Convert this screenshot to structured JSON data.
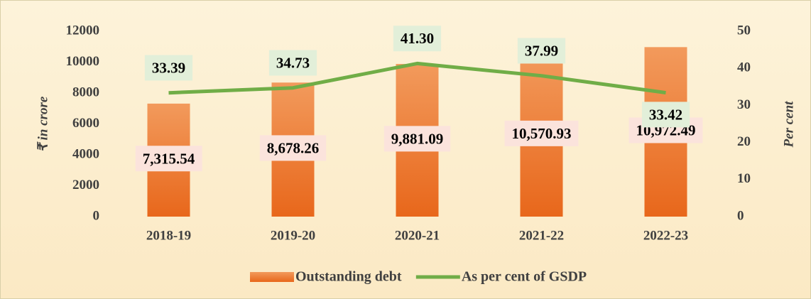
{
  "chart_data": {
    "type": "bar_line",
    "categories": [
      "2018-19",
      "2019-20",
      "2020-21",
      "2021-22",
      "2022-23"
    ],
    "series": [
      {
        "name": "Outstanding debt",
        "color": "#ed7d31",
        "type": "bar",
        "values": [
          7315.54,
          8678.26,
          9881.09,
          10570.93,
          10972.49
        ],
        "value_labels": [
          "7,315.54",
          "8,678.26",
          "9,881.09",
          "10,570.93",
          "10,972.49"
        ]
      },
      {
        "name": "As per cent of GSDP",
        "color": "#70ad47",
        "type": "line",
        "axis": "y2",
        "values": [
          33.39,
          34.73,
          41.3,
          37.99,
          33.42
        ],
        "value_labels": [
          "33.39",
          "34.73",
          "41.30",
          "37.99",
          "33.42"
        ]
      }
    ],
    "y_label": "₹ in crore",
    "y2_label": "Per cent",
    "ylim": [
      0,
      12000
    ],
    "yticks": [
      0,
      2000,
      4000,
      6000,
      8000,
      10000,
      12000
    ],
    "y2lim": [
      0,
      50
    ],
    "y2ticks": [
      0,
      10,
      20,
      30,
      40,
      50
    ],
    "legend": "bottom"
  }
}
